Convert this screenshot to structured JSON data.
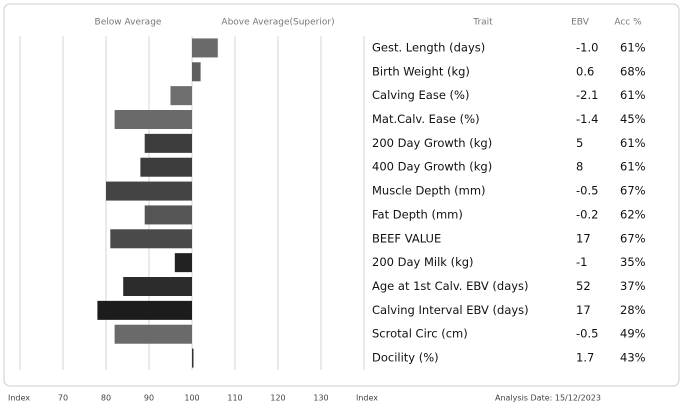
{
  "chart_data": {
    "type": "bar",
    "below_label": "Below Average",
    "above_label": "Above Average(Superior)",
    "x_label": "Index",
    "footer": "Analysis Date: 15/12/2023",
    "xlim": [
      60,
      140
    ],
    "xticks": [
      70,
      80,
      90,
      100,
      110,
      120,
      130
    ],
    "grid": true,
    "categories": [
      "Gest. Length (days)",
      "Birth Weight (kg)",
      "Calving Ease (%)",
      "Mat.Calv. Ease (%)",
      "200 Day Growth (kg)",
      "400 Day Growth (kg)",
      "Muscle Depth (mm)",
      "Fat Depth (mm)",
      "BEEF VALUE",
      "200 Day Milk (kg)",
      "Age at 1st Calv. EBV (days)",
      "Calving Interval EBV (days)",
      "Scrotal Circ (cm)",
      "Docility (%)"
    ],
    "values": [
      106,
      102,
      95,
      82,
      89,
      88,
      80,
      89,
      81,
      96,
      84,
      78,
      82,
      100
    ],
    "colors": [
      "#6a6a6a",
      "#5e5e5e",
      "#6e6e6e",
      "#6a6a6a",
      "#3c3c3c",
      "#3c3c3c",
      "#444444",
      "#555555",
      "#4a4a4a",
      "#222222",
      "#2c2c2c",
      "#1c1c1c",
      "#6a6a6a",
      "#333333"
    ]
  },
  "table": {
    "headers": [
      "Trait",
      "EBV",
      "Acc %"
    ],
    "ebv": [
      "-1.0",
      "0.6",
      "-2.1",
      "-1.4",
      "5",
      "8",
      "-0.5",
      "-0.2",
      "17",
      "-1",
      "52",
      "17",
      "-0.5",
      "1.7"
    ],
    "acc": [
      "61%",
      "68%",
      "61%",
      "45%",
      "61%",
      "61%",
      "67%",
      "62%",
      "67%",
      "35%",
      "37%",
      "28%",
      "49%",
      "43%"
    ]
  }
}
